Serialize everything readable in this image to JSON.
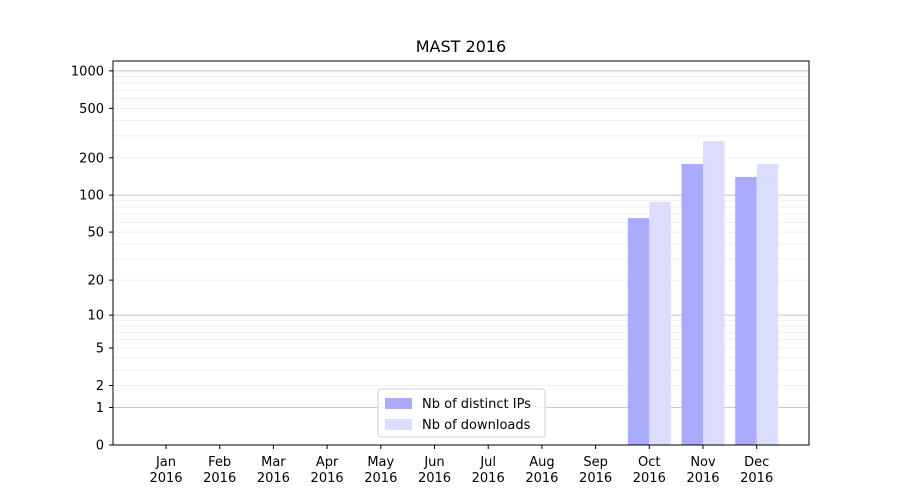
{
  "chart_data": {
    "type": "bar",
    "title": "MAST 2016",
    "xlabel": "",
    "ylabel": "",
    "y_scale": "log(1+y)",
    "ylim": [
      0,
      1200
    ],
    "y_ticks_major": [
      0,
      1,
      2,
      5,
      10,
      20,
      50,
      100,
      200,
      500,
      1000
    ],
    "y_gridlines_major": [
      1,
      10,
      100,
      1000
    ],
    "categories": [
      {
        "month": "Jan",
        "year": "2016"
      },
      {
        "month": "Feb",
        "year": "2016"
      },
      {
        "month": "Mar",
        "year": "2016"
      },
      {
        "month": "Apr",
        "year": "2016"
      },
      {
        "month": "May",
        "year": "2016"
      },
      {
        "month": "Jun",
        "year": "2016"
      },
      {
        "month": "Jul",
        "year": "2016"
      },
      {
        "month": "Aug",
        "year": "2016"
      },
      {
        "month": "Sep",
        "year": "2016"
      },
      {
        "month": "Oct",
        "year": "2016"
      },
      {
        "month": "Nov",
        "year": "2016"
      },
      {
        "month": "Dec",
        "year": "2016"
      }
    ],
    "series": [
      {
        "name": "Nb of distinct IPs",
        "color": "#aaaaff",
        "values": [
          0,
          0,
          0,
          0,
          0,
          0,
          0,
          0,
          0,
          65,
          178,
          140
        ]
      },
      {
        "name": "Nb of downloads",
        "color": "#dcdcff",
        "values": [
          0,
          0,
          0,
          0,
          0,
          0,
          0,
          0,
          0,
          88,
          272,
          178
        ]
      }
    ],
    "legend_position": "lower-center",
    "grid": true
  }
}
